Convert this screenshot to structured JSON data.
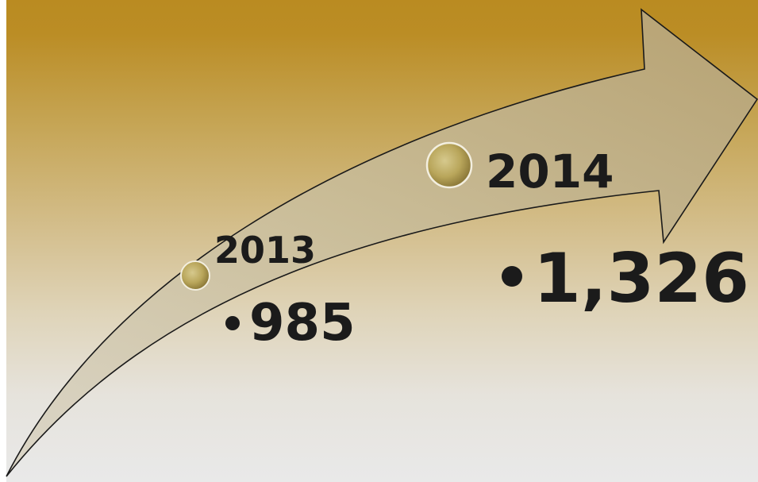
{
  "milestones": [
    {
      "year": "2013",
      "value": "985"
    },
    {
      "year": "2014",
      "value": "1,326"
    }
  ],
  "colors": {
    "background_top": "#bc8c21",
    "background_mid": "#d7c495",
    "background_bottom": "#e9e9e9",
    "arrow_fill": "#c8bc9a",
    "arrow_stroke": "#1a1a1a",
    "marker_gold": "#b7a25a",
    "text": "#1b1b1b"
  },
  "icons": {
    "arrow": "curved-arrow-icon",
    "marker": "gold-circle-marker-icon"
  }
}
